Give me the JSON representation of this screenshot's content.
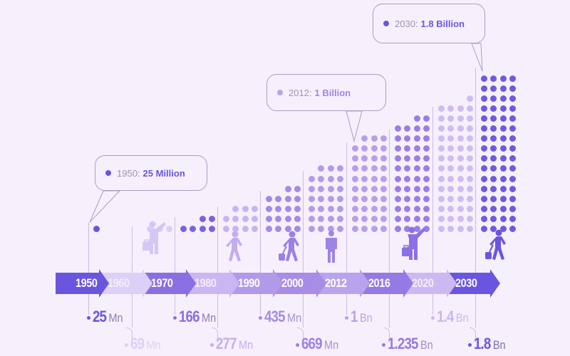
{
  "chart_data": {
    "type": "pictogram-timeline",
    "title": "",
    "categories": [
      "1950",
      "1960",
      "1970",
      "1980",
      "1990",
      "2000",
      "2012",
      "2016",
      "2020",
      "2030"
    ],
    "values_millions": [
      25,
      69,
      166,
      277,
      435,
      669,
      1000,
      1235,
      1400,
      1800
    ],
    "value_labels": [
      "25 Mn",
      "69 Mn",
      "166 Mn",
      "277 Mn",
      "435 Mn",
      "669 Mn",
      "1 Bn",
      "1.235 Bn",
      "1.4 Bn",
      "1.8 Bn"
    ],
    "dot_counts": [
      1,
      3,
      6,
      11,
      18,
      27,
      39,
      46,
      53,
      64
    ],
    "annotations": [
      {
        "year": "1950",
        "text": "1950:",
        "value": "25 Million"
      },
      {
        "year": "2012",
        "text": "2012:",
        "value": "1 Billion"
      },
      {
        "year": "2030",
        "text": "2030:",
        "value": "1.8 Billion"
      }
    ],
    "xlabel": "",
    "ylabel": ""
  },
  "bubbles": [
    {
      "year": "1950: ",
      "value": "25 Million"
    },
    {
      "year": "2012: ",
      "value": "1 Billion"
    },
    {
      "year": "2030: ",
      "value": "1.8 Billion"
    }
  ],
  "timeline": [
    {
      "year": "1950",
      "num": "25",
      "unit": "Mn",
      "color": "#6a55df",
      "row": "top"
    },
    {
      "year": "1960",
      "num": "69",
      "unit": "Mn",
      "color": "#ddd0f6",
      "row": "bottom"
    },
    {
      "year": "1970",
      "num": "166",
      "unit": "Mn",
      "color": "#8a6fe2",
      "row": "top"
    },
    {
      "year": "1980",
      "num": "277",
      "unit": "Mn",
      "color": "#cbb6f1",
      "row": "bottom"
    },
    {
      "year": "1990",
      "num": "435",
      "unit": "Mn",
      "color": "#b299ea",
      "row": "top"
    },
    {
      "year": "2000",
      "num": "669",
      "unit": "Mn",
      "color": "#a88ce6",
      "row": "bottom"
    },
    {
      "year": "2012",
      "num": "1",
      "unit": "Bn",
      "color": "#b9a3ec",
      "row": "top"
    },
    {
      "year": "2016",
      "num": "1.235",
      "unit": "Bn",
      "color": "#9579e4",
      "row": "bottom"
    },
    {
      "year": "2020",
      "num": "1.4",
      "unit": "Bn",
      "color": "#cdb9f2",
      "row": "top"
    },
    {
      "year": "2030",
      "num": "1.8",
      "unit": "Bn",
      "color": "#6a55df",
      "row": "bottom"
    }
  ]
}
